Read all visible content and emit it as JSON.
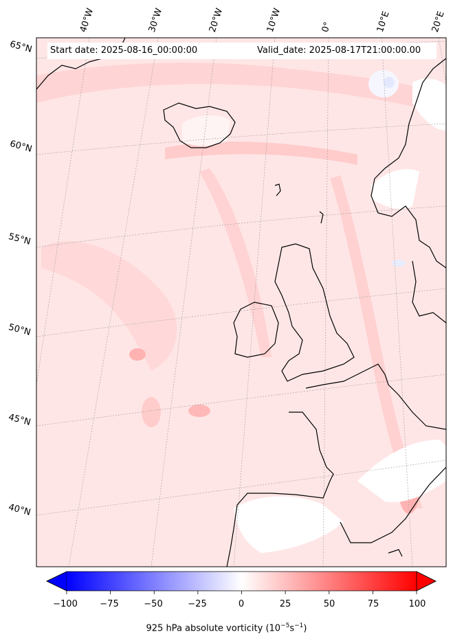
{
  "header": {
    "start_date": "Start date: 2025-08-16_00:00:00",
    "valid_date": "Valid_date: 2025-08-17T21:00:00.00"
  },
  "map": {
    "projection": "lambert-conformal",
    "region": "North Atlantic / Western Europe",
    "field": "925 hPa absolute vorticity",
    "lon_labels": [
      "40°W",
      "30°W",
      "20°W",
      "10°W",
      "0°",
      "10°E",
      "20°E"
    ],
    "lat_labels": [
      "65°N",
      "60°N",
      "55°N",
      "50°N",
      "45°N",
      "40°N"
    ],
    "gridlines": true
  },
  "colorbar": {
    "ticks": [
      "−100",
      "−75",
      "−50",
      "−25",
      "0",
      "25",
      "50",
      "75",
      "100"
    ],
    "range": [
      -100,
      100
    ],
    "min_color": "#0000ff",
    "mid_color": "#ffffff",
    "max_color": "#ff0000",
    "extend": "both",
    "label_main": "925 hPa absolute vorticity (10",
    "label_exp1": "−5",
    "label_mid": "s",
    "label_exp2": "−1",
    "label_end": ")"
  }
}
